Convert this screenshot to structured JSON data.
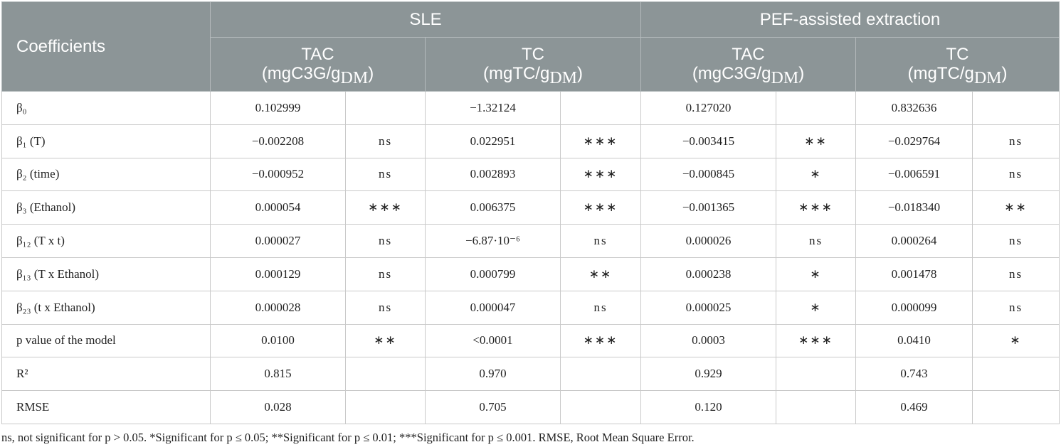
{
  "table": {
    "header": {
      "first": "Coefficients",
      "groups": [
        "SLE",
        "PEF-assisted extraction"
      ]
    },
    "sub_headers": [
      {
        "name": "TAC",
        "unit": "(mgC3G/g",
        "unit_sub": "DM",
        "unit_end": ")"
      },
      {
        "name": "TC",
        "unit": "(mgTC/g",
        "unit_sub": "DM",
        "unit_end": ")"
      },
      {
        "name": "TAC",
        "unit": "(mgC3G/g",
        "unit_sub": "DM",
        "unit_end": ")"
      },
      {
        "name": "TC",
        "unit": "(mgTC/g",
        "unit_sub": "DM",
        "unit_end": ")"
      }
    ],
    "rows": [
      [
        "β₀",
        "0.102999",
        null,
        "−1.32124",
        null,
        "0.127020",
        null,
        "0.832636",
        null
      ],
      [
        "β₁ (T)",
        "−0.002208",
        "ns",
        "0.022951",
        "∗∗∗",
        "−0.003415",
        "∗∗",
        "−0.029764",
        "ns"
      ],
      [
        "β₂ (time)",
        "−0.000952",
        "ns",
        "0.002893",
        "∗∗∗",
        "−0.000845",
        "∗",
        "−0.006591",
        "ns"
      ],
      [
        "β₃ (Ethanol)",
        "0.000054",
        "∗∗∗",
        "0.006375",
        "∗∗∗",
        "−0.001365",
        "∗∗∗",
        "−0.018340",
        "∗∗"
      ],
      [
        "β₁₂ (T x t)",
        "0.000027",
        "ns",
        "−6.87·10⁻⁶",
        "ns",
        "0.000026",
        "ns",
        "0.000264",
        "ns"
      ],
      [
        "β₁₃ (T x Ethanol)",
        "0.000129",
        "ns",
        "0.000799",
        "∗∗",
        "0.000238",
        "∗",
        "0.001478",
        "ns"
      ],
      [
        "β₂₃ (t x Ethanol)",
        "0.000028",
        "ns",
        "0.000047",
        "ns",
        "0.000025",
        "∗",
        "0.000099",
        "ns"
      ],
      [
        "p value of the model",
        "0.0100",
        "∗∗",
        "<0.0001",
        "∗∗∗",
        "0.0003",
        "∗∗∗",
        "0.0410",
        "∗"
      ],
      [
        "R²",
        "0.815",
        null,
        "0.970",
        null,
        "0.929",
        null,
        "0.743",
        null
      ],
      [
        "RMSE",
        "0.028",
        null,
        "0.705",
        null,
        "0.120",
        null,
        "0.469",
        null
      ]
    ],
    "footnote": "ns, not significant for p > 0.05. *Significant for p ≤ 0.05; **Significant for p ≤ 0.01; ***Significant for p ≤ 0.001. RMSE, Root Mean Square Error."
  }
}
